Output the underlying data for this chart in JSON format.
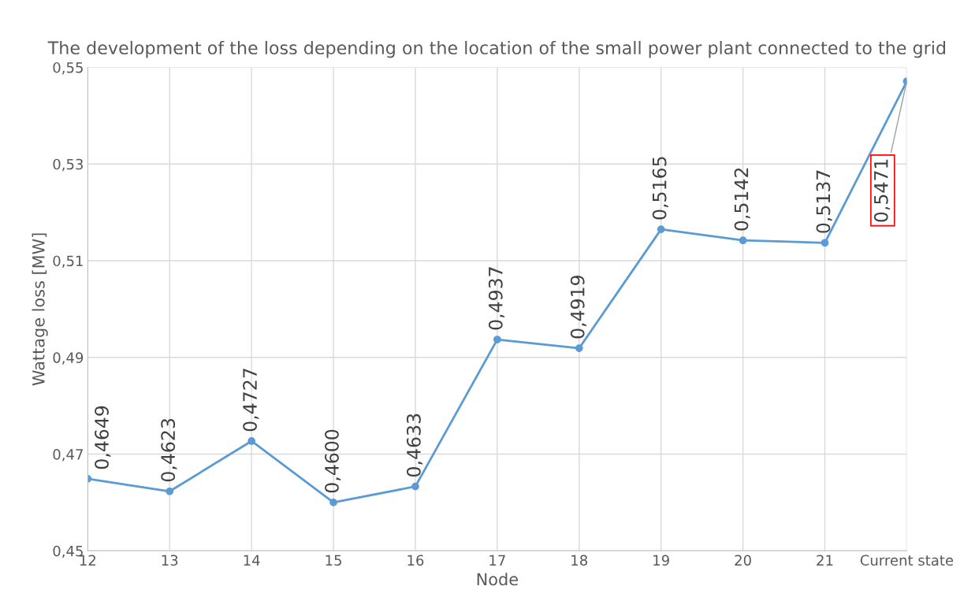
{
  "chart_data": {
    "type": "line",
    "title": "The development of the loss depending on the location of the small power plant connected to the grid",
    "xlabel": "Node",
    "ylabel": "Wattage loss [MW]",
    "categories": [
      "12",
      "13",
      "14",
      "15",
      "16",
      "17",
      "18",
      "19",
      "20",
      "21",
      "Current state"
    ],
    "series": [
      {
        "color": "#5b9bd5",
        "values": [
          0.4649,
          0.4623,
          0.4727,
          0.46,
          0.4633,
          0.4937,
          0.4919,
          0.5165,
          0.5142,
          0.5137,
          0.5471
        ],
        "value_labels": [
          "0,4649",
          "0,4623",
          "0,4727",
          "0,4600",
          "0,4633",
          "0,4937",
          "0,4919",
          "0,5165",
          "0,5142",
          "0,5137",
          "0,5471"
        ]
      }
    ],
    "ylim": [
      0.45,
      0.55
    ],
    "yticks": [
      {
        "value": 0.45,
        "label": "0,45"
      },
      {
        "value": 0.47,
        "label": "0,47"
      },
      {
        "value": 0.49,
        "label": "0,49"
      },
      {
        "value": 0.51,
        "label": "0,51"
      },
      {
        "value": 0.53,
        "label": "0,53"
      },
      {
        "value": 0.55,
        "label": "0,55"
      }
    ],
    "grid": true,
    "marker": "circle",
    "line_style": "solid"
  }
}
